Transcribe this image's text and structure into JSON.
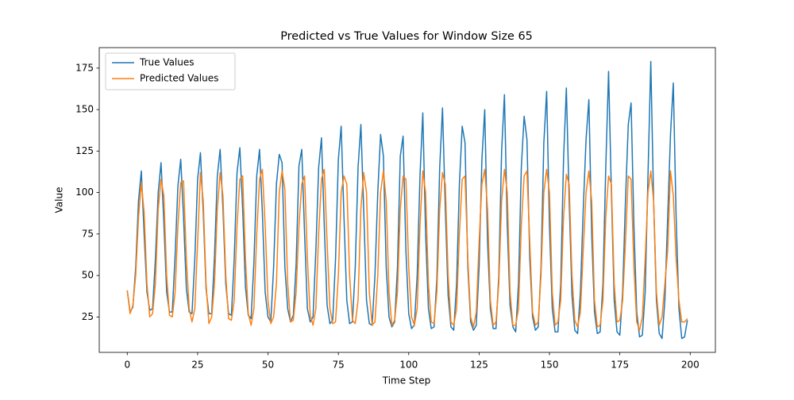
{
  "chart_data": {
    "type": "line",
    "title": "Predicted vs True Values for Window Size 65",
    "x_label": "Time Step",
    "y_label": "Value",
    "x": [
      0,
      1,
      2,
      3,
      4,
      5,
      6,
      7,
      8,
      9,
      10,
      11,
      12,
      13,
      14,
      15,
      16,
      17,
      18,
      19,
      20,
      21,
      22,
      23,
      24,
      25,
      26,
      27,
      28,
      29,
      30,
      31,
      32,
      33,
      34,
      35,
      36,
      37,
      38,
      39,
      40,
      41,
      42,
      43,
      44,
      45,
      46,
      47,
      48,
      49,
      50,
      51,
      52,
      53,
      54,
      55,
      56,
      57,
      58,
      59,
      60,
      61,
      62,
      63,
      64,
      65,
      66,
      67,
      68,
      69,
      70,
      71,
      72,
      73,
      74,
      75,
      76,
      77,
      78,
      79,
      80,
      81,
      82,
      83,
      84,
      85,
      86,
      87,
      88,
      89,
      90,
      91,
      92,
      93,
      94,
      95,
      96,
      97,
      98,
      99,
      100,
      101,
      102,
      103,
      104,
      105,
      106,
      107,
      108,
      109,
      110,
      111,
      112,
      113,
      114,
      115,
      116,
      117,
      118,
      119,
      120,
      121,
      122,
      123,
      124,
      125,
      126,
      127,
      128,
      129,
      130,
      131,
      132,
      133,
      134,
      135,
      136,
      137,
      138,
      139,
      140,
      141,
      142,
      143,
      144,
      145,
      146,
      147,
      148,
      149,
      150,
      151,
      152,
      153,
      154,
      155,
      156,
      157,
      158,
      159,
      160,
      161,
      162,
      163,
      164,
      165,
      166,
      167,
      168,
      169,
      170,
      171,
      172,
      173,
      174,
      175,
      176,
      177,
      178,
      179,
      180,
      181,
      182,
      183,
      184,
      185,
      186,
      187,
      188,
      189,
      190,
      191,
      192,
      193,
      194,
      195,
      196,
      197,
      198,
      199
    ],
    "series": [
      {
        "name": "True Values",
        "color": "#1f77b4",
        "values": [
          41,
          28,
          31,
          55,
          95,
          113,
          75,
          40,
          29,
          30,
          60,
          100,
          118,
          82,
          40,
          28,
          28,
          62,
          104,
          120,
          85,
          42,
          28,
          27,
          60,
          108,
          124,
          88,
          42,
          27,
          27,
          62,
          110,
          126,
          90,
          45,
          27,
          26,
          60,
          112,
          127,
          90,
          43,
          26,
          24,
          58,
          110,
          126,
          88,
          40,
          25,
          22,
          55,
          105,
          123,
          118,
          55,
          30,
          22,
          26,
          57,
          116,
          126,
          75,
          30,
          22,
          25,
          65,
          115,
          133,
          80,
          32,
          21,
          23,
          60,
          120,
          140,
          85,
          35,
          21,
          22,
          55,
          115,
          141,
          90,
          35,
          21,
          20,
          50,
          100,
          135,
          122,
          55,
          25,
          19,
          22,
          55,
          122,
          134,
          65,
          27,
          18,
          20,
          50,
          110,
          148,
          75,
          30,
          18,
          19,
          48,
          115,
          151,
          90,
          38,
          19,
          17,
          45,
          105,
          140,
          130,
          55,
          22,
          17,
          20,
          55,
          120,
          150,
          70,
          30,
          18,
          18,
          50,
          125,
          159,
          80,
          32,
          19,
          16,
          45,
          115,
          146,
          132,
          60,
          25,
          17,
          19,
          55,
          130,
          161,
          80,
          30,
          16,
          16,
          45,
          120,
          163,
          95,
          38,
          17,
          15,
          40,
          90,
          132,
          156,
          75,
          28,
          15,
          16,
          45,
          115,
          173,
          100,
          35,
          16,
          14,
          40,
          95,
          141,
          154,
          80,
          28,
          13,
          14,
          40,
          110,
          179,
          95,
          35,
          15,
          12,
          35,
          85,
          135,
          166,
          85,
          30,
          12,
          13,
          23
        ]
      },
      {
        "name": "Predicted Values",
        "color": "#ff7f0e",
        "values": [
          41,
          27,
          32,
          50,
          85,
          106,
          88,
          45,
          25,
          27,
          45,
          90,
          108,
          98,
          50,
          26,
          25,
          40,
          80,
          106,
          107,
          60,
          30,
          22,
          30,
          70,
          112,
          95,
          45,
          21,
          25,
          45,
          90,
          112,
          98,
          50,
          24,
          23,
          35,
          80,
          108,
          110,
          60,
          27,
          20,
          30,
          75,
          108,
          114,
          80,
          35,
          21,
          25,
          45,
          100,
          113,
          102,
          45,
          22,
          23,
          40,
          80,
          105,
          110,
          60,
          26,
          20,
          30,
          75,
          108,
          114,
          70,
          30,
          21,
          22,
          50,
          100,
          110,
          105,
          50,
          23,
          21,
          35,
          90,
          112,
          100,
          40,
          20,
          22,
          50,
          100,
          113,
          95,
          40,
          20,
          23,
          40,
          90,
          110,
          108,
          55,
          25,
          20,
          30,
          80,
          113,
          100,
          45,
          22,
          21,
          40,
          90,
          112,
          105,
          50,
          22,
          20,
          30,
          75,
          108,
          110,
          60,
          25,
          19,
          28,
          70,
          105,
          114,
          90,
          35,
          20,
          22,
          45,
          95,
          114,
          100,
          40,
          20,
          20,
          30,
          80,
          110,
          113,
          70,
          28,
          20,
          22,
          50,
          100,
          114,
          100,
          40,
          20,
          22,
          35,
          85,
          111,
          105,
          50,
          23,
          19,
          28,
          65,
          100,
          113,
          95,
          35,
          19,
          20,
          35,
          85,
          110,
          105,
          45,
          22,
          23,
          35,
          70,
          110,
          108,
          55,
          22,
          17,
          25,
          60,
          100,
          113,
          95,
          40,
          20,
          25,
          45,
          65,
          113,
          98,
          60,
          35,
          22,
          22,
          24
        ]
      }
    ],
    "xlim": [
      -9.95,
      208.95
    ],
    "ylim": [
      3.65,
      187.35
    ],
    "xticks": [
      0,
      25,
      50,
      75,
      100,
      125,
      150,
      175,
      200
    ],
    "yticks": [
      25,
      50,
      75,
      100,
      125,
      150,
      175
    ],
    "legend": "upper left"
  }
}
